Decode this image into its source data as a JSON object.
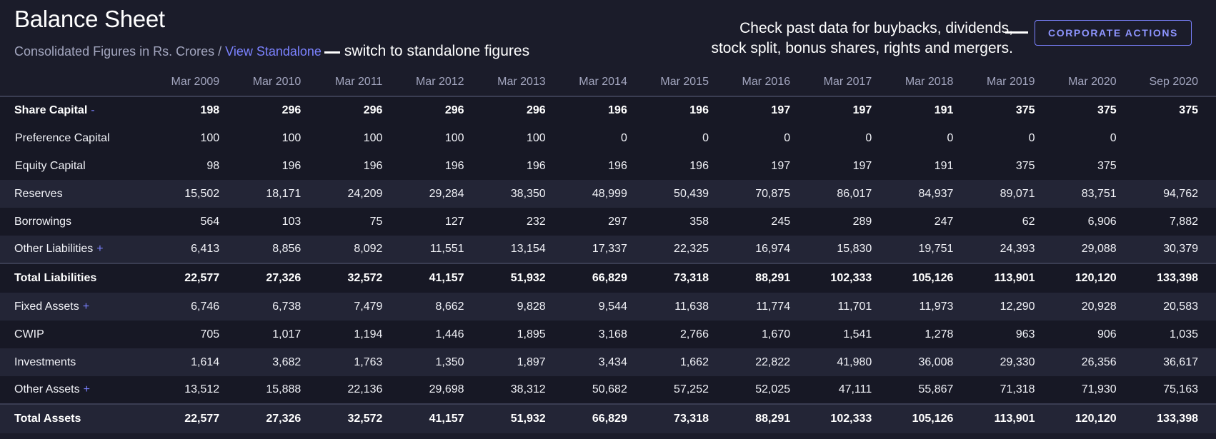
{
  "header": {
    "title": "Balance Sheet",
    "subtitle_prefix": "Consolidated Figures in Rs. Crores /",
    "standalone_link": "View Standalone",
    "standalone_hint": "switch to standalone figures",
    "note_line1": "Check past data for buybacks, dividends,",
    "note_line2": "stock split, bonus shares, rights and mergers.",
    "corporate_actions_label": "CORPORATE ACTIONS"
  },
  "colors": {
    "accent": "#7b82ff",
    "background": "#1b1c2a",
    "row_alt": "#232536",
    "row_dark": "#171825"
  },
  "table": {
    "columns": [
      "",
      "Mar 2009",
      "Mar 2010",
      "Mar 2011",
      "Mar 2012",
      "Mar 2013",
      "Mar 2014",
      "Mar 2015",
      "Mar 2016",
      "Mar 2017",
      "Mar 2018",
      "Mar 2019",
      "Mar 2020",
      "Sep 2020"
    ],
    "rows": [
      {
        "label": "Share Capital",
        "toggle": "-",
        "bold": true,
        "style": "a",
        "values": [
          "198",
          "296",
          "296",
          "296",
          "296",
          "196",
          "196",
          "197",
          "197",
          "191",
          "375",
          "375",
          "375"
        ]
      },
      {
        "label": "Preference Capital",
        "toggle": "",
        "bold": false,
        "style": "a",
        "sub": true,
        "values": [
          "100",
          "100",
          "100",
          "100",
          "100",
          "0",
          "0",
          "0",
          "0",
          "0",
          "0",
          "0",
          ""
        ]
      },
      {
        "label": "Equity Capital",
        "toggle": "",
        "bold": false,
        "style": "a",
        "sub": true,
        "values": [
          "98",
          "196",
          "196",
          "196",
          "196",
          "196",
          "196",
          "197",
          "197",
          "191",
          "375",
          "375",
          ""
        ]
      },
      {
        "label": "Reserves",
        "toggle": "",
        "bold": false,
        "style": "b",
        "values": [
          "15,502",
          "18,171",
          "24,209",
          "29,284",
          "38,350",
          "48,999",
          "50,439",
          "70,875",
          "86,017",
          "84,937",
          "89,071",
          "83,751",
          "94,762"
        ]
      },
      {
        "label": "Borrowings",
        "toggle": "",
        "bold": false,
        "style": "a",
        "values": [
          "564",
          "103",
          "75",
          "127",
          "232",
          "297",
          "358",
          "245",
          "289",
          "247",
          "62",
          "6,906",
          "7,882"
        ]
      },
      {
        "label": "Other Liabilities",
        "toggle": "+",
        "bold": false,
        "style": "b",
        "values": [
          "6,413",
          "8,856",
          "8,092",
          "11,551",
          "13,154",
          "17,337",
          "22,325",
          "16,974",
          "15,830",
          "19,751",
          "24,393",
          "29,088",
          "30,379"
        ]
      },
      {
        "label": "Total Liabilities",
        "toggle": "",
        "bold": true,
        "style": "a",
        "total": true,
        "values": [
          "22,577",
          "27,326",
          "32,572",
          "41,157",
          "51,932",
          "66,829",
          "73,318",
          "88,291",
          "102,333",
          "105,126",
          "113,901",
          "120,120",
          "133,398"
        ]
      },
      {
        "label": "Fixed Assets",
        "toggle": "+",
        "bold": false,
        "style": "b",
        "values": [
          "6,746",
          "6,738",
          "7,479",
          "8,662",
          "9,828",
          "9,544",
          "11,638",
          "11,774",
          "11,701",
          "11,973",
          "12,290",
          "20,928",
          "20,583"
        ]
      },
      {
        "label": "CWIP",
        "toggle": "",
        "bold": false,
        "style": "a",
        "values": [
          "705",
          "1,017",
          "1,194",
          "1,446",
          "1,895",
          "3,168",
          "2,766",
          "1,670",
          "1,541",
          "1,278",
          "963",
          "906",
          "1,035"
        ]
      },
      {
        "label": "Investments",
        "toggle": "",
        "bold": false,
        "style": "b",
        "values": [
          "1,614",
          "3,682",
          "1,763",
          "1,350",
          "1,897",
          "3,434",
          "1,662",
          "22,822",
          "41,980",
          "36,008",
          "29,330",
          "26,356",
          "36,617"
        ]
      },
      {
        "label": "Other Assets",
        "toggle": "+",
        "bold": false,
        "style": "a",
        "values": [
          "13,512",
          "15,888",
          "22,136",
          "29,698",
          "38,312",
          "50,682",
          "57,252",
          "52,025",
          "47,111",
          "55,867",
          "71,318",
          "71,930",
          "75,163"
        ]
      },
      {
        "label": "Total Assets",
        "toggle": "",
        "bold": true,
        "style": "b",
        "total": true,
        "values": [
          "22,577",
          "27,326",
          "32,572",
          "41,157",
          "51,932",
          "66,829",
          "73,318",
          "88,291",
          "102,333",
          "105,126",
          "113,901",
          "120,120",
          "133,398"
        ]
      }
    ]
  }
}
